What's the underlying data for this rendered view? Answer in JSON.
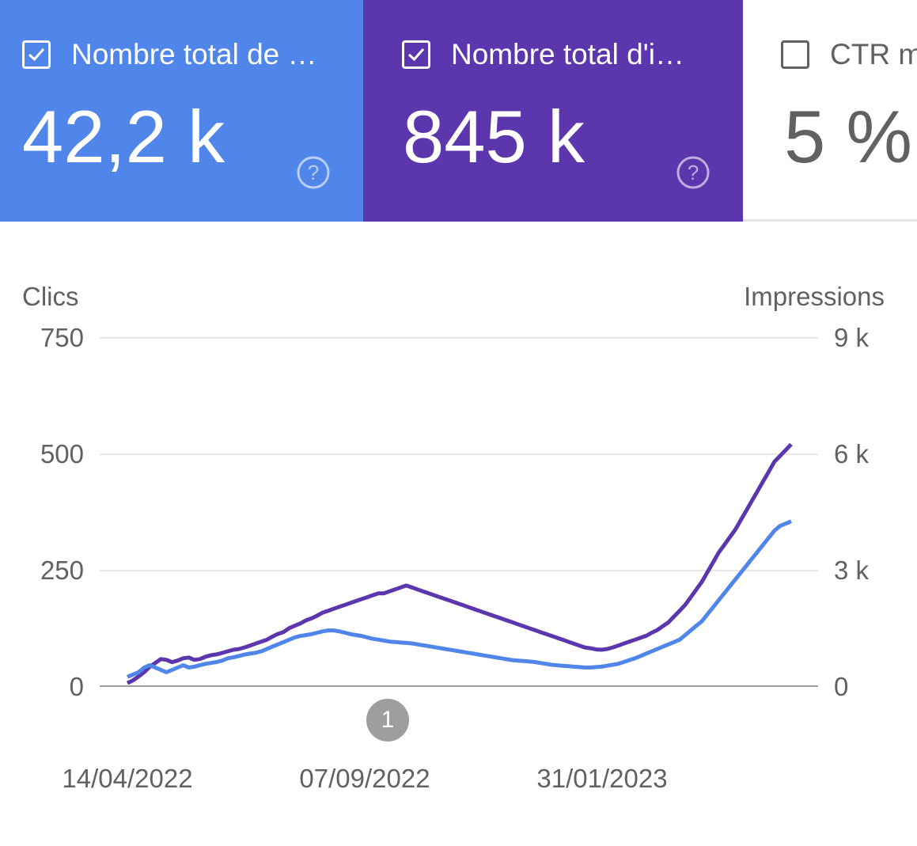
{
  "cards": [
    {
      "title": "Nombre total de …",
      "value": "42,2 k",
      "checked": true,
      "color": "#5085e9",
      "help_icon": "help-circle-icon"
    },
    {
      "title": "Nombre total d'i…",
      "value": "845 k",
      "checked": true,
      "color": "#5b36ad",
      "help_icon": "help-circle-icon"
    },
    {
      "title": "CTR m",
      "value": "5 %",
      "checked": false,
      "color": "#ffffff"
    }
  ],
  "chart_data": {
    "type": "line",
    "ylabel_left": "Clics",
    "ylabel_right": "Impressions",
    "y_left_ticks": [
      "750",
      "500",
      "250",
      "0"
    ],
    "y_right_ticks": [
      "9 k",
      "6 k",
      "3 k",
      "0"
    ],
    "ylim_left": [
      0,
      750
    ],
    "ylim_right": [
      0,
      9000
    ],
    "x_tick_labels": [
      "14/04/2022",
      "07/09/2022",
      "31/01/2023"
    ],
    "x_range": [
      "2022-04-14",
      "2023-06-07"
    ],
    "grid": true,
    "annotation": "1",
    "series": [
      {
        "name": "",
        "axis": "right",
        "color": "#5b36ad",
        "values": [
          80,
          150,
          250,
          360,
          500,
          600,
          700,
          680,
          620,
          660,
          720,
          740,
          680,
          700,
          760,
          800,
          820,
          860,
          900,
          940,
          960,
          1000,
          1050,
          1100,
          1150,
          1200,
          1280,
          1350,
          1400,
          1500,
          1560,
          1620,
          1700,
          1750,
          1820,
          1900,
          1950,
          2000,
          2050,
          2100,
          2150,
          2200,
          2250,
          2300,
          2350,
          2400,
          2400,
          2450,
          2500,
          2550,
          2600,
          2550,
          2500,
          2450,
          2400,
          2350,
          2300,
          2250,
          2200,
          2150,
          2100,
          2050,
          2000,
          1950,
          1900,
          1850,
          1800,
          1750,
          1700,
          1650,
          1600,
          1550,
          1500,
          1450,
          1400,
          1350,
          1300,
          1250,
          1200,
          1150,
          1100,
          1050,
          1000,
          980,
          950,
          940,
          960,
          1000,
          1050,
          1100,
          1150,
          1200,
          1250,
          1300,
          1380,
          1450,
          1550,
          1650,
          1800,
          1950,
          2100,
          2300,
          2500,
          2700,
          2950,
          3200,
          3450,
          3650,
          3850,
          4050,
          4300,
          4550,
          4800,
          5050,
          5300,
          5550,
          5800,
          5950,
          6100,
          6250
        ]
      },
      {
        "name": "",
        "axis": "left",
        "color": "#5085e9",
        "values": [
          20,
          25,
          30,
          40,
          45,
          40,
          35,
          30,
          35,
          40,
          45,
          40,
          42,
          45,
          48,
          50,
          52,
          55,
          60,
          62,
          65,
          68,
          70,
          72,
          75,
          80,
          85,
          90,
          95,
          100,
          105,
          108,
          110,
          112,
          115,
          118,
          120,
          120,
          118,
          115,
          112,
          110,
          108,
          105,
          102,
          100,
          98,
          96,
          95,
          94,
          93,
          92,
          90,
          88,
          86,
          84,
          82,
          80,
          78,
          76,
          74,
          72,
          70,
          68,
          66,
          64,
          62,
          60,
          58,
          56,
          55,
          54,
          53,
          52,
          50,
          48,
          46,
          45,
          44,
          43,
          42,
          41,
          40,
          40,
          41,
          42,
          44,
          46,
          48,
          52,
          56,
          60,
          65,
          70,
          75,
          80,
          85,
          90,
          95,
          100,
          110,
          120,
          130,
          140,
          155,
          170,
          185,
          200,
          215,
          230,
          245,
          260,
          275,
          290,
          305,
          320,
          335,
          345,
          350,
          355
        ]
      }
    ]
  }
}
